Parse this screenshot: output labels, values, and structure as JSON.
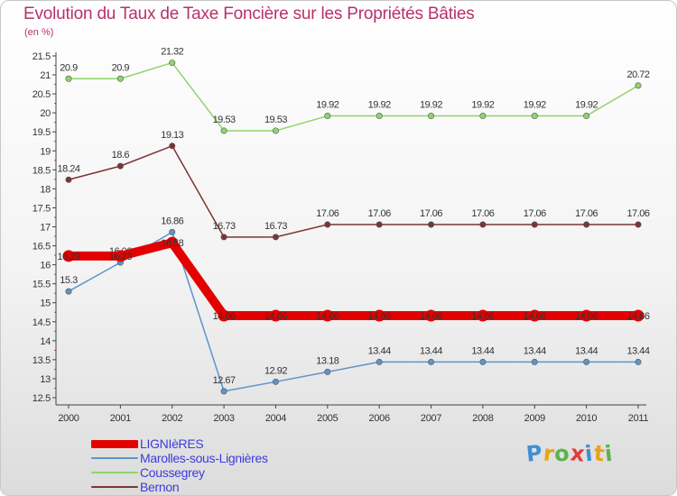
{
  "title": "Evolution du Taux de Taxe Foncière sur les Propriétés Bâties",
  "unit": "(en %)",
  "brand": {
    "letters": [
      {
        "ch": "P",
        "color": "#3f8fd6"
      },
      {
        "ch": "r",
        "color": "#e8a317"
      },
      {
        "ch": "o",
        "color": "#5bb44a"
      },
      {
        "ch": "x",
        "color": "#e53a3a"
      },
      {
        "ch": "i",
        "color": "#3f8fd6"
      },
      {
        "ch": "t",
        "color": "#e8a317"
      },
      {
        "ch": "i",
        "color": "#5bb44a"
      }
    ]
  },
  "chart_data": {
    "type": "line",
    "title": "Evolution du Taux de Taxe Foncière sur les Propriétés Bâties",
    "ylabel": "(en %)",
    "xlabel": "",
    "x": [
      "2000",
      "2001",
      "2002",
      "2003",
      "2004",
      "2005",
      "2006",
      "2007",
      "2008",
      "2009",
      "2010",
      "2011"
    ],
    "ylim": [
      12.5,
      21.5
    ],
    "yticks": [
      "12.5",
      "13",
      "13.5",
      "14",
      "14.5",
      "15",
      "15.5",
      "16",
      "16.5",
      "17",
      "17.5",
      "18",
      "18.5",
      "19",
      "19.5",
      "20",
      "20.5",
      "21",
      "21.5"
    ],
    "grid": false,
    "legend_position": "bottom-left",
    "series": [
      {
        "name": "LIGNIèRES",
        "color": "#e30000",
        "emphasis": true,
        "values": [
          16.23,
          16.23,
          16.58,
          14.66,
          14.66,
          14.66,
          14.66,
          14.66,
          14.66,
          14.66,
          14.66,
          14.66
        ],
        "labels": [
          "16.23",
          "16.23",
          "16.58",
          "14.66",
          "14.66",
          "14.66",
          "14.66",
          "14.66",
          "14.66",
          "14.66",
          "14.66",
          "14.66"
        ]
      },
      {
        "name": "Marolles-sous-Lignières",
        "color": "#5f94c8",
        "emphasis": false,
        "values": [
          15.3,
          16.06,
          16.86,
          12.67,
          12.92,
          13.18,
          13.44,
          13.44,
          13.44,
          13.44,
          13.44,
          13.44
        ],
        "labels": [
          "15.3",
          "16.06",
          "16.86",
          "12.67",
          "12.92",
          "13.18",
          "13.44",
          "13.44",
          "13.44",
          "13.44",
          "13.44",
          "13.44"
        ]
      },
      {
        "name": "Coussegrey",
        "color": "#8fd46a",
        "emphasis": false,
        "values": [
          20.9,
          20.9,
          21.32,
          19.53,
          19.53,
          19.92,
          19.92,
          19.92,
          19.92,
          19.92,
          19.92,
          20.72
        ],
        "labels": [
          "20.9",
          "20.9",
          "21.32",
          "19.53",
          "19.53",
          "19.92",
          "19.92",
          "19.92",
          "19.92",
          "19.92",
          "19.92",
          "20.72"
        ]
      },
      {
        "name": "Bernon",
        "color": "#7d3434",
        "emphasis": false,
        "values": [
          18.24,
          18.6,
          19.13,
          16.73,
          16.73,
          17.06,
          17.06,
          17.06,
          17.06,
          17.06,
          17.06,
          17.06
        ],
        "labels": [
          "18.24",
          "18.6",
          "19.13",
          "16.73",
          "16.73",
          "17.06",
          "17.06",
          "17.06",
          "17.06",
          "17.06",
          "17.06",
          "17.06"
        ]
      }
    ]
  }
}
